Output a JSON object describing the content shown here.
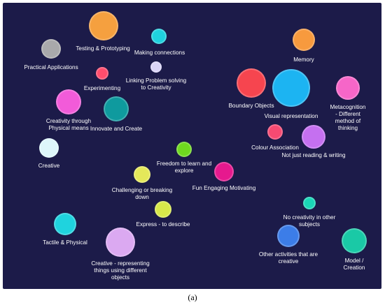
{
  "caption": "(a)",
  "colors": {
    "background": "#1c1b49",
    "text": "#ffffff"
  },
  "nodes": [
    {
      "id": "testing-prototyping",
      "label": "Testing & Prototyping",
      "color": "#f5a03f"
    },
    {
      "id": "making-connections",
      "label": "Making connections",
      "color": "#1fd2de"
    },
    {
      "id": "practical-applications",
      "label": "Practical Applications",
      "color": "#a9a9ab"
    },
    {
      "id": "experimenting",
      "label": "Experimenting",
      "color": "#ff4d6d"
    },
    {
      "id": "linking-problem-solving",
      "label": "Linking Problem solving\nto Creativity",
      "color": "#d9d4f7"
    },
    {
      "id": "memory",
      "label": "Memory",
      "color": "#f79a3e"
    },
    {
      "id": "boundary-objects",
      "label": "Boundary Objects",
      "color": "#f6454f"
    },
    {
      "id": "visual-representation",
      "label": "Visual representation",
      "color": "#1cb4f2"
    },
    {
      "id": "metacognition",
      "label": "Metacognition - Different\nmethod of thinking",
      "color": "#f666c8"
    },
    {
      "id": "creativity-physical-means",
      "label": "Creativity through\nPhysical means",
      "color": "#f25bd9"
    },
    {
      "id": "innovate-create",
      "label": "Innovate and Create",
      "color": "#0f9a9e"
    },
    {
      "id": "colour-association",
      "label": "Colour Association",
      "color": "#f64a72"
    },
    {
      "id": "not-just-reading-writing",
      "label": "Not just reading & writing",
      "color": "#c570f0"
    },
    {
      "id": "creative",
      "label": "Creative",
      "color": "#def6fb"
    },
    {
      "id": "freedom-to-learn",
      "label": "Freedom to learn and\nexplore",
      "color": "#6fd91f"
    },
    {
      "id": "fun-engaging-motivating",
      "label": "Fun Engaging Motivating",
      "color": "#e6198e"
    },
    {
      "id": "challenging-breaking-down",
      "label": "Challenging or breaking\ndown",
      "color": "#e4e85a"
    },
    {
      "id": "express-describe",
      "label": "Express - to describe",
      "color": "#d7e84a"
    },
    {
      "id": "no-creativity-other-subjects",
      "label": "No creativity in other\nsubjects",
      "color": "#1ad6b6"
    },
    {
      "id": "tactile-physical",
      "label": "Tactile & Physical",
      "color": "#1fd3de"
    },
    {
      "id": "creative-representing",
      "label": "Creative - representing\nthings using different\nobjects",
      "color": "#dba9f1"
    },
    {
      "id": "other-activities-creative",
      "label": "Other activities that are\ncreative",
      "color": "#3c7de8"
    },
    {
      "id": "model-creation",
      "label": "Model / Creation",
      "color": "#1ac9a6"
    }
  ]
}
